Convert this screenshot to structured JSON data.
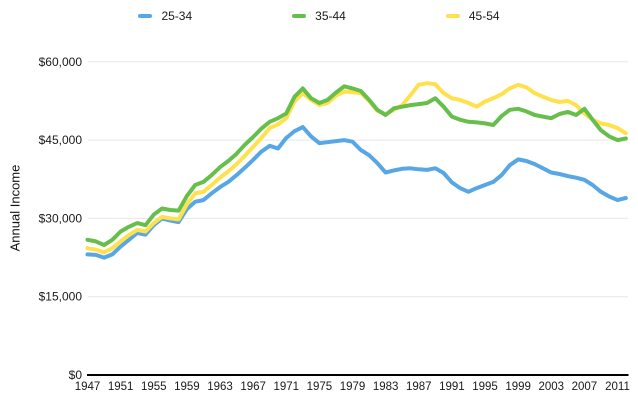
{
  "legend": {
    "items": [
      {
        "label": "25-34",
        "color": "#57A7E6"
      },
      {
        "label": "35-44",
        "color": "#67BE4B"
      },
      {
        "label": "45-54",
        "color": "#FFE14D"
      }
    ]
  },
  "y_axis": {
    "title": "Annual Income",
    "ticks": [
      {
        "value": 0,
        "label": "$0"
      },
      {
        "value": 15000,
        "label": "$15,000"
      },
      {
        "value": 30000,
        "label": "$30,000"
      },
      {
        "value": 45000,
        "label": "$45,000"
      },
      {
        "value": 60000,
        "label": "$60,000"
      }
    ]
  },
  "x_axis": {
    "tick_years": [
      1947,
      1951,
      1955,
      1959,
      1963,
      1967,
      1971,
      1975,
      1979,
      1983,
      1987,
      1991,
      1995,
      1999,
      2003,
      2007,
      2011
    ]
  },
  "colors": {
    "grid": "#e7e7e7",
    "axis": "#000000",
    "text": "#1a1a1a"
  },
  "chart_data": {
    "type": "line",
    "title": "",
    "xlabel": "",
    "ylabel": "Annual Income",
    "ylim": [
      0,
      60000
    ],
    "x_range": [
      1947,
      2012
    ],
    "grid": "horizontal",
    "legend_position": "top-center",
    "x": [
      1947,
      1948,
      1949,
      1950,
      1951,
      1952,
      1953,
      1954,
      1955,
      1956,
      1957,
      1958,
      1959,
      1960,
      1961,
      1962,
      1963,
      1964,
      1965,
      1966,
      1967,
      1968,
      1969,
      1970,
      1971,
      1972,
      1973,
      1974,
      1975,
      1976,
      1977,
      1978,
      1979,
      1980,
      1981,
      1982,
      1983,
      1984,
      1985,
      1986,
      1987,
      1988,
      1989,
      1990,
      1991,
      1992,
      1993,
      1994,
      1995,
      1996,
      1997,
      1998,
      1999,
      2000,
      2001,
      2002,
      2003,
      2004,
      2005,
      2006,
      2007,
      2008,
      2009,
      2010,
      2011,
      2012
    ],
    "series": [
      {
        "name": "25-34",
        "color": "#57A7E6",
        "values": [
          23100,
          23000,
          22500,
          23100,
          24600,
          25900,
          27200,
          26900,
          28700,
          30000,
          29600,
          29300,
          31800,
          33200,
          33500,
          34800,
          36000,
          37000,
          38300,
          39700,
          41200,
          42800,
          43900,
          43400,
          45400,
          46700,
          47500,
          45700,
          44400,
          44600,
          44800,
          45000,
          44700,
          43100,
          42100,
          40600,
          38800,
          39200,
          39500,
          39600,
          39400,
          39300,
          39600,
          38700,
          36900,
          35800,
          35100,
          35800,
          36400,
          37000,
          38300,
          40200,
          41300,
          41000,
          40400,
          39600,
          38800,
          38500,
          38100,
          37800,
          37400,
          36400,
          35100,
          34200,
          33500,
          33900
        ]
      },
      {
        "name": "35-44",
        "color": "#67BE4B",
        "values": [
          25900,
          25600,
          24900,
          25900,
          27500,
          28400,
          29100,
          28700,
          30700,
          31900,
          31600,
          31500,
          34300,
          36400,
          37000,
          38300,
          39800,
          41000,
          42400,
          44100,
          45600,
          47200,
          48500,
          49200,
          50100,
          53300,
          54900,
          53000,
          52100,
          52700,
          54100,
          55300,
          54900,
          54400,
          52700,
          50800,
          49800,
          51100,
          51400,
          51700,
          51900,
          52100,
          53000,
          51400,
          49500,
          48900,
          48500,
          48400,
          48200,
          47900,
          49600,
          50800,
          51000,
          50500,
          49800,
          49500,
          49200,
          50000,
          50400,
          49800,
          51000,
          48900,
          46900,
          45700,
          45000,
          45300
        ]
      },
      {
        "name": "45-54",
        "color": "#FFE14D",
        "values": [
          24300,
          24000,
          23500,
          24300,
          25600,
          26800,
          27800,
          27500,
          29100,
          30300,
          30000,
          29800,
          32700,
          34800,
          35100,
          36400,
          37800,
          39000,
          40400,
          42000,
          43700,
          45400,
          47300,
          48000,
          49200,
          52400,
          54000,
          52700,
          51700,
          52100,
          53500,
          54300,
          54200,
          54000,
          52500,
          50600,
          50000,
          50800,
          51700,
          53600,
          55600,
          55900,
          55700,
          54000,
          53000,
          52700,
          52100,
          51400,
          52400,
          53000,
          53800,
          54900,
          55600,
          55100,
          54000,
          53300,
          52700,
          52300,
          52500,
          51700,
          50100,
          48900,
          48200,
          47900,
          47300,
          46300
        ]
      }
    ]
  }
}
